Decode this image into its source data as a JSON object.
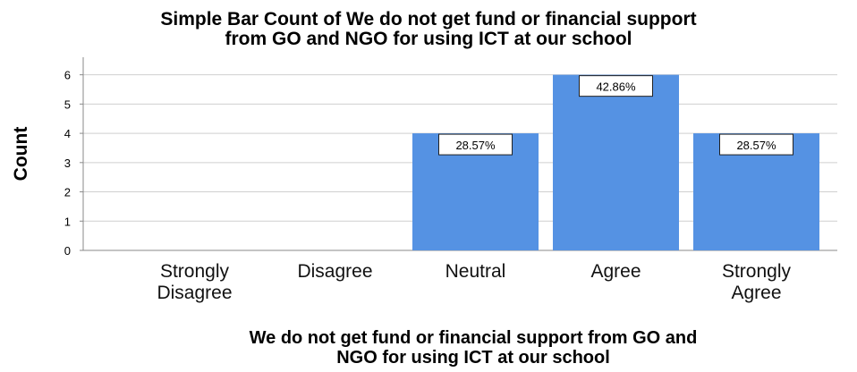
{
  "chart_data": {
    "type": "bar",
    "title": [
      "Simple Bar Count of We do not get fund or financial support",
      "from GO and NGO for using ICT at our school"
    ],
    "xlabel": [
      "We do not get fund or financial support from GO and",
      "NGO for using ICT at our school"
    ],
    "ylabel": "Count",
    "categories": [
      [
        "Strongly",
        "Disagree"
      ],
      [
        "Disagree"
      ],
      [
        "Neutral"
      ],
      [
        "Agree"
      ],
      [
        "Strongly",
        "Agree"
      ]
    ],
    "values": [
      0,
      0,
      4,
      6,
      4
    ],
    "data_labels": [
      "",
      "",
      "28.57%",
      "42.86%",
      "28.57%"
    ],
    "yticks": [
      "0",
      "1",
      "2",
      "3",
      "4",
      "5",
      "6"
    ],
    "ylim": [
      0,
      6.6
    ],
    "grid": true,
    "bar_color": "#5592e3",
    "grid_color": "#cfcfcf",
    "background": "#ffffff"
  }
}
